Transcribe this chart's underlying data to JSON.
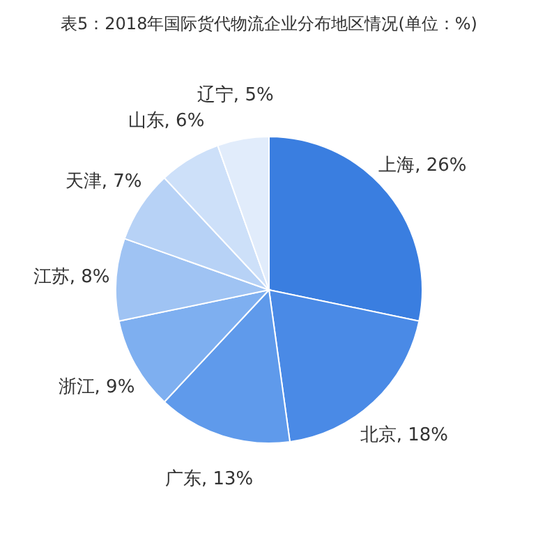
{
  "chart_data": {
    "type": "pie",
    "title": "表5：2018年国际货代物流企业分布地区情况(单位：%)",
    "categories": [
      "上海",
      "北京",
      "广东",
      "浙江",
      "江苏",
      "天津",
      "山东",
      "辽宁"
    ],
    "values": [
      26,
      18,
      13,
      9,
      8,
      7,
      6,
      5
    ],
    "value_labels": [
      "26%",
      "18%",
      "13%",
      "9%",
      "8%",
      "7%",
      "6%",
      "5%"
    ],
    "colors": [
      "#3a7ee0",
      "#4a8ae6",
      "#5f9aeb",
      "#7eaff0",
      "#9fc3f3",
      "#b7d2f6",
      "#cde0f9",
      "#e1ecfb"
    ]
  }
}
